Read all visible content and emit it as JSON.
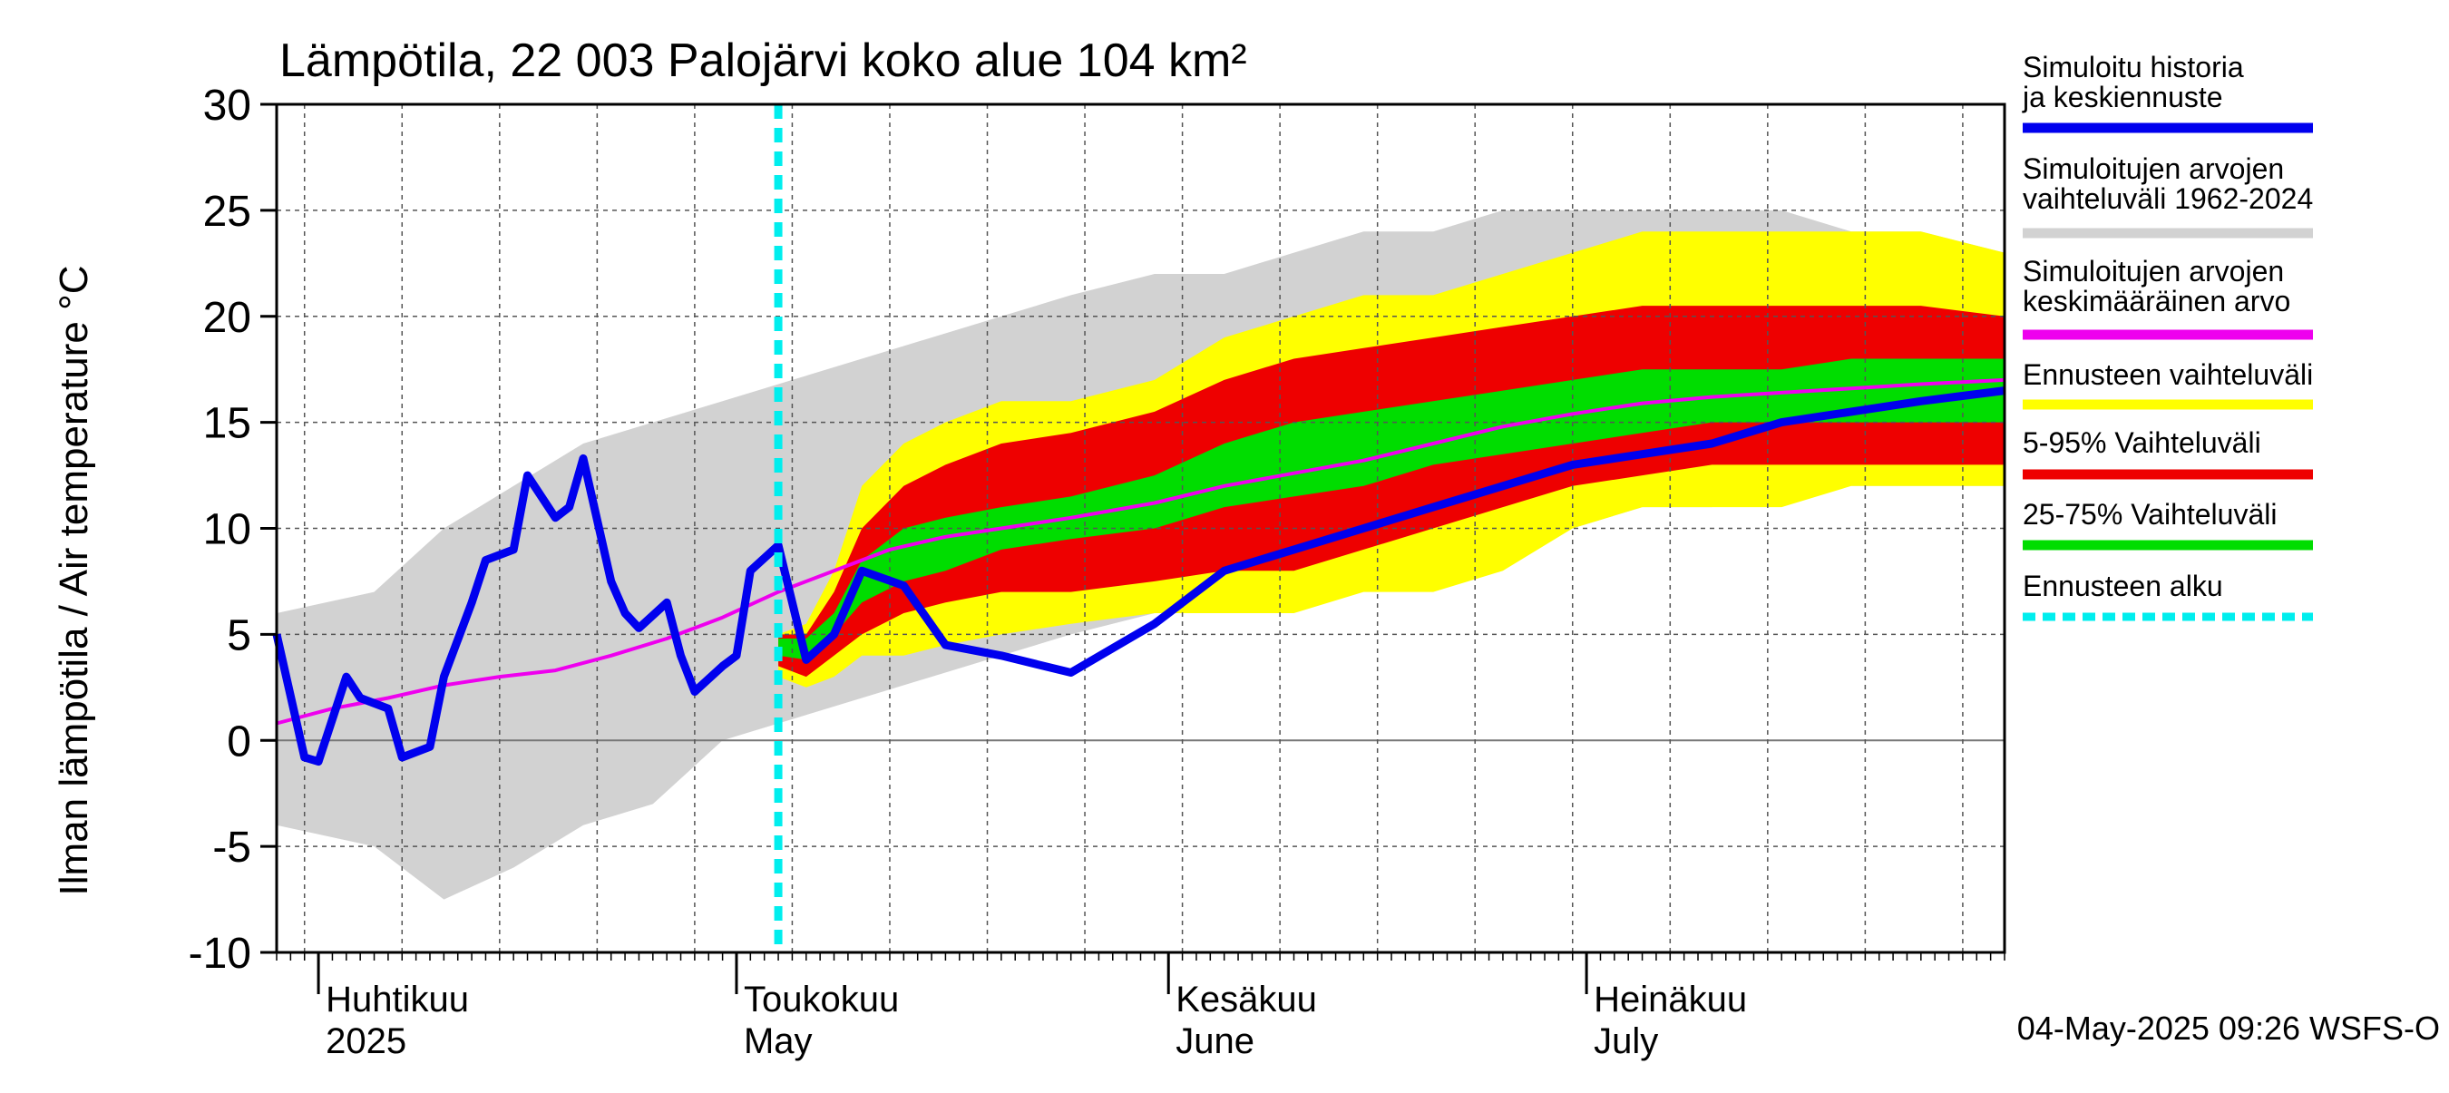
{
  "chart_data": {
    "type": "area",
    "title": "Lämpötila, 22 003 Palojärvi koko alue 104 km²",
    "ylabel": "Ilman lämpötila / Air temperature   °C",
    "ylim": [
      -10,
      30
    ],
    "yticks": [
      -10,
      -5,
      0,
      5,
      10,
      15,
      20,
      25,
      30
    ],
    "xlim": [
      "2025-03-29",
      "2025-07-31"
    ],
    "month_labels": [
      {
        "date": "2025-04-01",
        "fi": "Huhtikuu",
        "en": "2025"
      },
      {
        "date": "2025-05-01",
        "fi": "Toukokuu",
        "en": "May"
      },
      {
        "date": "2025-06-01",
        "fi": "Kesäkuu",
        "en": "June"
      },
      {
        "date": "2025-07-01",
        "fi": "Heinäkuu",
        "en": "July"
      }
    ],
    "forecast_start": "2025-05-04",
    "timestamp": "04-May-2025 09:26 WSFS-O",
    "legend": [
      {
        "label": "Simuloitu historia ja keskiennuste",
        "color": "#0000ee",
        "style": "solid"
      },
      {
        "label": "Simuloitujen arvojen vaihteluväli 1962-2024",
        "color": "#d2d2d2",
        "style": "solid"
      },
      {
        "label": "Simuloitujen arvojen keskimääräinen arvo",
        "color": "#ee00ee",
        "style": "solid"
      },
      {
        "label": "Ennusteen vaihteluväli",
        "color": "#ffff00",
        "style": "solid"
      },
      {
        "label": "5-95% Vaihteluväli",
        "color": "#ee0000",
        "style": "solid"
      },
      {
        "label": "25-75% Vaihteluväli",
        "color": "#00dd00",
        "style": "solid"
      },
      {
        "label": "Ennusteen alku",
        "color": "#00eeee",
        "style": "dashed"
      }
    ],
    "series": [
      {
        "name": "Simuloitujen arvojen vaihteluväli 1962-2024",
        "kind": "band",
        "x": [
          "2025-03-29",
          "2025-04-05",
          "2025-04-10",
          "2025-04-15",
          "2025-04-20",
          "2025-04-25",
          "2025-04-30",
          "2025-05-05",
          "2025-05-10",
          "2025-05-15",
          "2025-05-20",
          "2025-05-25",
          "2025-05-31",
          "2025-06-05",
          "2025-06-10",
          "2025-06-15",
          "2025-06-20",
          "2025-06-25",
          "2025-06-30",
          "2025-07-05",
          "2025-07-10",
          "2025-07-15",
          "2025-07-20",
          "2025-07-25",
          "2025-07-31"
        ],
        "low": [
          -4,
          -5,
          -7.5,
          -6,
          -4,
          -3,
          0,
          1,
          2,
          3,
          4,
          5,
          6,
          7,
          7,
          8,
          9,
          10,
          10,
          11,
          11,
          12,
          12,
          12,
          12
        ],
        "high": [
          6,
          7,
          10,
          12,
          14,
          15,
          16,
          17,
          18,
          19,
          20,
          21,
          22,
          22,
          23,
          24,
          24,
          25,
          25,
          25,
          25,
          25,
          24,
          24,
          23
        ]
      },
      {
        "name": "Ennusteen vaihteluväli",
        "kind": "band",
        "x": [
          "2025-05-04",
          "2025-05-06",
          "2025-05-08",
          "2025-05-10",
          "2025-05-13",
          "2025-05-16",
          "2025-05-20",
          "2025-05-25",
          "2025-05-31",
          "2025-06-05",
          "2025-06-10",
          "2025-06-15",
          "2025-06-20",
          "2025-06-25",
          "2025-06-30",
          "2025-07-05",
          "2025-07-10",
          "2025-07-15",
          "2025-07-20",
          "2025-07-25",
          "2025-07-31"
        ],
        "low": [
          3,
          2.5,
          3,
          4,
          4,
          4.5,
          5,
          5.5,
          6,
          6,
          6,
          7,
          7,
          8,
          10,
          11,
          11,
          11,
          12,
          12,
          12
        ],
        "high": [
          5,
          5.5,
          8,
          12,
          14,
          15,
          16,
          16,
          17,
          19,
          20,
          21,
          21,
          22,
          23,
          24,
          24,
          24,
          24,
          24,
          23
        ]
      },
      {
        "name": "5-95% Vaihteluväli",
        "kind": "band",
        "x": [
          "2025-05-04",
          "2025-05-06",
          "2025-05-08",
          "2025-05-10",
          "2025-05-13",
          "2025-05-16",
          "2025-05-20",
          "2025-05-25",
          "2025-05-31",
          "2025-06-05",
          "2025-06-10",
          "2025-06-15",
          "2025-06-20",
          "2025-06-25",
          "2025-06-30",
          "2025-07-05",
          "2025-07-10",
          "2025-07-15",
          "2025-07-20",
          "2025-07-25",
          "2025-07-31"
        ],
        "low": [
          3.5,
          3,
          4,
          5,
          6,
          6.5,
          7,
          7,
          7.5,
          8,
          8,
          9,
          10,
          11,
          12,
          12.5,
          13,
          13,
          13,
          13,
          13
        ],
        "high": [
          5,
          5,
          7,
          10,
          12,
          13,
          14,
          14.5,
          15.5,
          17,
          18,
          18.5,
          19,
          19.5,
          20,
          20.5,
          20.5,
          20.5,
          20.5,
          20.5,
          20
        ]
      },
      {
        "name": "25-75% Vaihteluväli",
        "kind": "band",
        "x": [
          "2025-05-04",
          "2025-05-06",
          "2025-05-08",
          "2025-05-10",
          "2025-05-13",
          "2025-05-16",
          "2025-05-20",
          "2025-05-25",
          "2025-05-31",
          "2025-06-05",
          "2025-06-10",
          "2025-06-15",
          "2025-06-20",
          "2025-06-25",
          "2025-06-30",
          "2025-07-05",
          "2025-07-10",
          "2025-07-15",
          "2025-07-20",
          "2025-07-25",
          "2025-07-31"
        ],
        "low": [
          4,
          3.8,
          5,
          6.5,
          7.5,
          8,
          9,
          9.5,
          10,
          11,
          11.5,
          12,
          13,
          13.5,
          14,
          14.5,
          15,
          15,
          15,
          15,
          15
        ],
        "high": [
          4.8,
          4.8,
          6,
          8.5,
          10,
          10.5,
          11,
          11.5,
          12.5,
          14,
          15,
          15.5,
          16,
          16.5,
          17,
          17.5,
          17.5,
          17.5,
          18,
          18,
          18
        ]
      },
      {
        "name": "Simuloitujen arvojen keskimääräinen arvo",
        "kind": "line",
        "color": "#ee00ee",
        "x": [
          "2025-03-29",
          "2025-04-02",
          "2025-04-06",
          "2025-04-10",
          "2025-04-14",
          "2025-04-18",
          "2025-04-22",
          "2025-04-26",
          "2025-04-30",
          "2025-05-04",
          "2025-05-08",
          "2025-05-12",
          "2025-05-16",
          "2025-05-20",
          "2025-05-25",
          "2025-05-31",
          "2025-06-05",
          "2025-06-10",
          "2025-06-15",
          "2025-06-20",
          "2025-06-25",
          "2025-06-30",
          "2025-07-05",
          "2025-07-10",
          "2025-07-15",
          "2025-07-20",
          "2025-07-25",
          "2025-07-31"
        ],
        "y": [
          0.8,
          1.5,
          2,
          2.6,
          3,
          3.3,
          4,
          4.8,
          5.8,
          7,
          8,
          9,
          9.6,
          10,
          10.5,
          11.2,
          12,
          12.6,
          13.2,
          14,
          14.8,
          15.4,
          15.9,
          16.2,
          16.4,
          16.6,
          16.8,
          17
        ]
      },
      {
        "name": "Simuloitu historia ja keskiennuste",
        "kind": "line",
        "color": "#0000ee",
        "x": [
          "2025-03-29",
          "2025-03-31",
          "2025-04-01",
          "2025-04-03",
          "2025-04-04",
          "2025-04-06",
          "2025-04-07",
          "2025-04-09",
          "2025-04-10",
          "2025-04-12",
          "2025-04-13",
          "2025-04-15",
          "2025-04-16",
          "2025-04-18",
          "2025-04-19",
          "2025-04-20",
          "2025-04-22",
          "2025-04-23",
          "2025-04-24",
          "2025-04-26",
          "2025-04-27",
          "2025-04-28",
          "2025-04-30",
          "2025-05-01",
          "2025-05-02",
          "2025-05-04",
          "2025-05-06",
          "2025-05-08",
          "2025-05-10",
          "2025-05-13",
          "2025-05-16",
          "2025-05-20",
          "2025-05-25",
          "2025-05-31",
          "2025-06-05",
          "2025-06-10",
          "2025-06-15",
          "2025-06-20",
          "2025-06-25",
          "2025-06-30",
          "2025-07-05",
          "2025-07-10",
          "2025-07-15",
          "2025-07-20",
          "2025-07-25",
          "2025-07-31"
        ],
        "y": [
          5,
          -0.8,
          -1,
          3,
          2,
          1.5,
          -0.8,
          -0.3,
          3,
          6.5,
          8.5,
          9,
          12.5,
          10.5,
          11,
          13.3,
          7.5,
          6,
          5.3,
          6.5,
          4,
          2.3,
          3.5,
          4,
          8,
          9.2,
          3.8,
          5,
          8,
          7.3,
          4.5,
          4,
          3.2,
          5.5,
          8,
          9,
          10,
          11,
          12,
          13,
          13.5,
          14,
          15,
          15.5,
          16,
          16.5
        ]
      }
    ]
  }
}
